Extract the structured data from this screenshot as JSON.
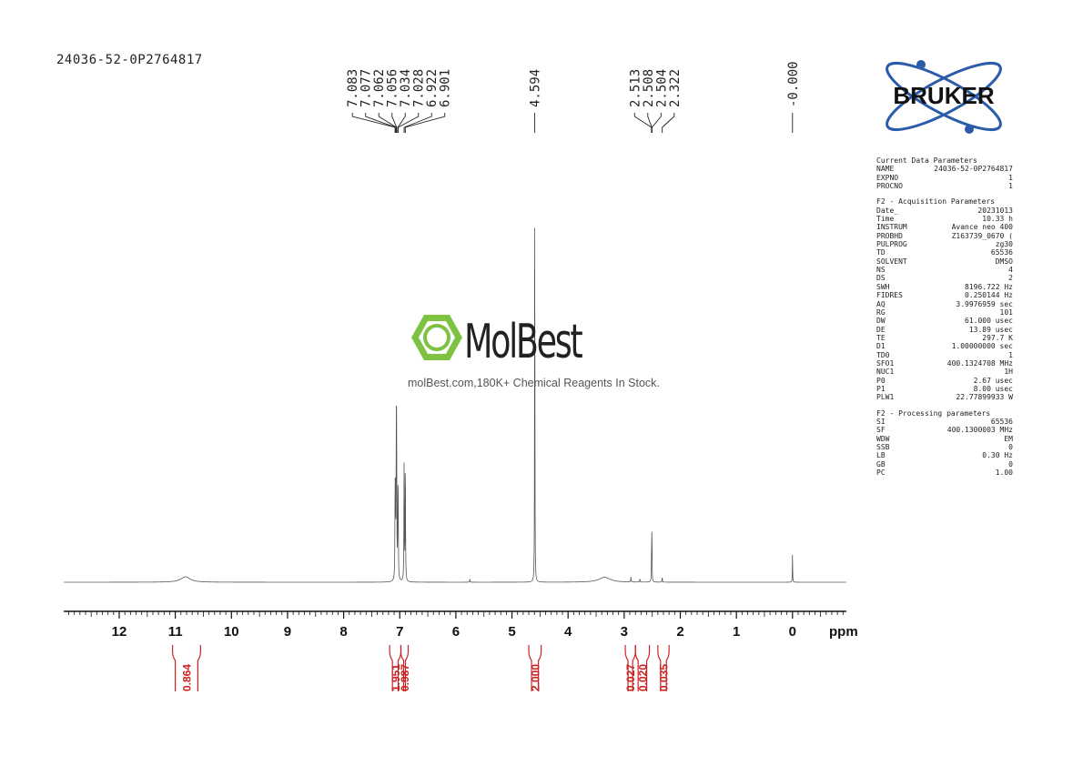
{
  "sample_id": "24036-52-0P2764817",
  "logos": {
    "bruker": "BRUKER",
    "molbest_name": "MolBest",
    "molbest_tagline": "molBest.com,180K+ Chemical Reagents In Stock."
  },
  "colors": {
    "spectrum": "#555555",
    "integral": "#cc2222",
    "text": "#222222",
    "molbest_green": "#7dc242",
    "bruker_blue": "#2a5caa"
  },
  "parameters": [
    {
      "title": "Current Data Parameters",
      "rows": [
        {
          "k": "NAME",
          "v": "24036-52-0P2764817"
        },
        {
          "k": "EXPNO",
          "v": "1"
        },
        {
          "k": "PROCNO",
          "v": "1"
        }
      ]
    },
    {
      "title": "F2 - Acquisition Parameters",
      "rows": [
        {
          "k": "Date_",
          "v": "20231013"
        },
        {
          "k": "Time",
          "v": "10.33 h"
        },
        {
          "k": "INSTRUM",
          "v": "Avance neo 400"
        },
        {
          "k": "PROBHD",
          "v": "Z163739_0670 ("
        },
        {
          "k": "PULPROG",
          "v": "zg30"
        },
        {
          "k": "TD",
          "v": "65536"
        },
        {
          "k": "SOLVENT",
          "v": "DMSO"
        },
        {
          "k": "NS",
          "v": "4"
        },
        {
          "k": "DS",
          "v": "2"
        },
        {
          "k": "SWH",
          "v": "8196.722 Hz"
        },
        {
          "k": "FIDRES",
          "v": "0.250144 Hz"
        },
        {
          "k": "AQ",
          "v": "3.9976959 sec"
        },
        {
          "k": "RG",
          "v": "101"
        },
        {
          "k": "DW",
          "v": "61.000 usec"
        },
        {
          "k": "DE",
          "v": "13.89 usec"
        },
        {
          "k": "TE",
          "v": "297.7 K"
        },
        {
          "k": "D1",
          "v": "1.00000000 sec"
        },
        {
          "k": "TD0",
          "v": "1"
        },
        {
          "k": "SFO1",
          "v": "400.1324708 MHz"
        },
        {
          "k": "NUC1",
          "v": "1H"
        },
        {
          "k": "P0",
          "v": "2.67 usec"
        },
        {
          "k": "P1",
          "v": "8.00 usec"
        },
        {
          "k": "PLW1",
          "v": "22.77899933 W"
        }
      ]
    },
    {
      "title": "F2 - Processing parameters",
      "rows": [
        {
          "k": "SI",
          "v": "65536"
        },
        {
          "k": "SF",
          "v": "400.1300003 MHz"
        },
        {
          "k": "WDW",
          "v": "EM"
        },
        {
          "k": "SSB",
          "v": "0"
        },
        {
          "k": "LB",
          "v": "0.30 Hz"
        },
        {
          "k": "GB",
          "v": "0"
        },
        {
          "k": "PC",
          "v": "1.00"
        }
      ]
    }
  ],
  "chart_data": {
    "type": "line",
    "xlabel": "ppm",
    "xlim": [
      13.0,
      -1.0
    ],
    "x_reversed": true,
    "tick_labels": [
      "12",
      "11",
      "10",
      "9",
      "8",
      "7",
      "6",
      "5",
      "4",
      "3",
      "2",
      "1",
      "0"
    ],
    "grid": false,
    "peaks": [
      {
        "ppm": 10.82,
        "intensity": 0.013,
        "width": 0.1
      },
      {
        "ppm": 7.083,
        "intensity": 0.18,
        "width": 0.004
      },
      {
        "ppm": 7.077,
        "intensity": 0.16,
        "width": 0.004
      },
      {
        "ppm": 7.062,
        "intensity": 0.3,
        "width": 0.004
      },
      {
        "ppm": 7.056,
        "intensity": 0.3,
        "width": 0.004
      },
      {
        "ppm": 7.034,
        "intensity": 0.17,
        "width": 0.004
      },
      {
        "ppm": 7.028,
        "intensity": 0.15,
        "width": 0.004
      },
      {
        "ppm": 6.922,
        "intensity": 0.29,
        "width": 0.004
      },
      {
        "ppm": 6.901,
        "intensity": 0.29,
        "width": 0.004
      },
      {
        "ppm": 5.75,
        "intensity": 0.008,
        "width": 0.004
      },
      {
        "ppm": 4.594,
        "intensity": 1.0,
        "width": 0.003
      },
      {
        "ppm": 3.35,
        "intensity": 0.012,
        "width": 0.12
      },
      {
        "ppm": 2.88,
        "intensity": 0.012,
        "width": 0.004
      },
      {
        "ppm": 2.72,
        "intensity": 0.008,
        "width": 0.004
      },
      {
        "ppm": 2.513,
        "intensity": 0.05,
        "width": 0.003
      },
      {
        "ppm": 2.508,
        "intensity": 0.09,
        "width": 0.003
      },
      {
        "ppm": 2.504,
        "intensity": 0.06,
        "width": 0.003
      },
      {
        "ppm": 2.322,
        "intensity": 0.012,
        "width": 0.004
      },
      {
        "ppm": 0.0,
        "intensity": 0.07,
        "width": 0.003
      }
    ],
    "peak_label_groups": [
      {
        "labels": [
          "7.083",
          "7.077",
          "7.062",
          "7.056",
          "7.034",
          "7.028",
          "6.922",
          "6.901"
        ],
        "ppm": [
          7.083,
          7.077,
          7.062,
          7.056,
          7.034,
          7.028,
          6.922,
          6.901
        ]
      },
      {
        "labels": [
          "4.594"
        ],
        "ppm": [
          4.594
        ]
      },
      {
        "labels": [
          "2.513",
          "2.508",
          "2.504",
          "2.322"
        ],
        "ppm": [
          2.513,
          2.508,
          2.504,
          2.322
        ]
      },
      {
        "labels": [
          "-0.000"
        ],
        "ppm": [
          0.0
        ]
      }
    ],
    "integrals": [
      {
        "from": 11.05,
        "to": 10.55,
        "value": "0.864"
      },
      {
        "from": 7.18,
        "to": 6.98,
        "value": "1.951"
      },
      {
        "from": 6.98,
        "to": 6.85,
        "value": "0.987"
      },
      {
        "from": 4.7,
        "to": 4.48,
        "value": "2.000"
      },
      {
        "from": 2.98,
        "to": 2.8,
        "value": "0.027"
      },
      {
        "from": 2.8,
        "to": 2.55,
        "value": "0.020"
      },
      {
        "from": 2.4,
        "to": 2.2,
        "value": "0.035"
      }
    ]
  }
}
